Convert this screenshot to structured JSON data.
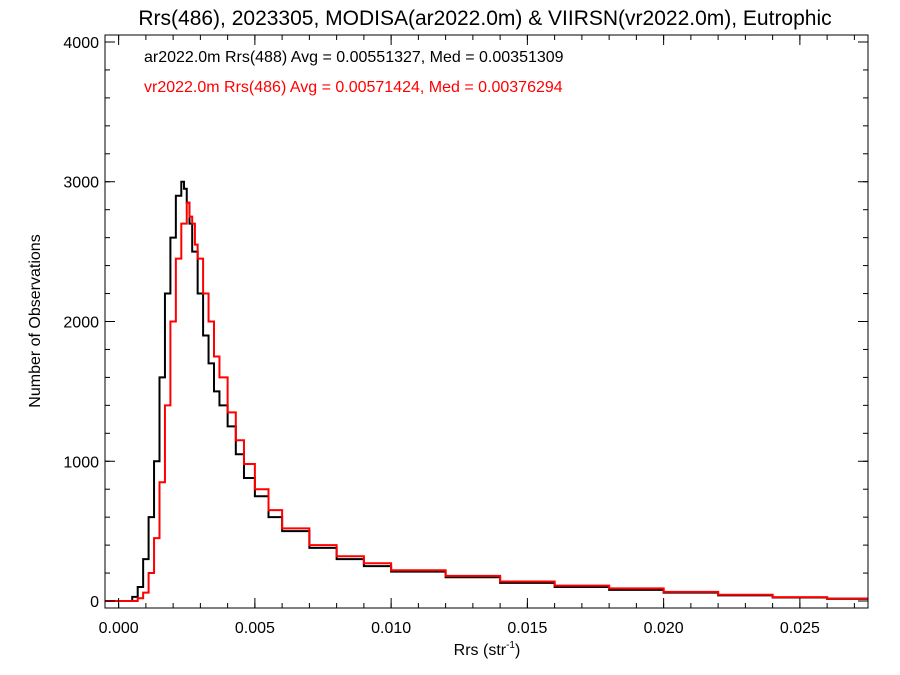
{
  "chart_data": {
    "type": "line",
    "step": true,
    "title": "Rrs(486), 2023305, MODISA(ar2022.0m) & VIIRSN(vr2022.0m), Eutrophic",
    "xlabel": "Rrs (str",
    "xlabel_sup": "-1",
    "xlabel_close": ")",
    "ylabel": "Number of Observations",
    "xlim": [
      -0.0005,
      0.0275
    ],
    "ylim": [
      -50,
      4050
    ],
    "xticks": [
      0.0,
      0.005,
      0.01,
      0.015,
      0.02,
      0.025
    ],
    "xtick_labels": [
      "0.000",
      "0.005",
      "0.010",
      "0.015",
      "0.020",
      "0.025"
    ],
    "yticks": [
      0,
      1000,
      2000,
      3000,
      4000
    ],
    "ytick_labels": [
      "0",
      "1000",
      "2000",
      "3000",
      "4000"
    ],
    "legend_position": "top-left",
    "series": [
      {
        "name": "ar2022.0m Rrs(488) Avg = 0.00551327, Med = 0.00351309",
        "color": "#000000",
        "x": [
          -0.0005,
          0.0005,
          0.0007,
          0.0009,
          0.0011,
          0.0013,
          0.0015,
          0.0017,
          0.0019,
          0.0021,
          0.0023,
          0.0024,
          0.0025,
          0.0026,
          0.0027,
          0.0029,
          0.0031,
          0.0033,
          0.0035,
          0.0037,
          0.004,
          0.0043,
          0.0046,
          0.005,
          0.0055,
          0.006,
          0.007,
          0.008,
          0.009,
          0.01,
          0.012,
          0.014,
          0.016,
          0.018,
          0.02,
          0.022,
          0.024,
          0.026,
          0.0275
        ],
        "values": [
          0,
          30,
          100,
          300,
          600,
          1000,
          1600,
          2200,
          2600,
          2900,
          3000,
          2950,
          2850,
          2700,
          2500,
          2200,
          1900,
          1700,
          1500,
          1400,
          1250,
          1050,
          880,
          750,
          600,
          500,
          380,
          300,
          250,
          210,
          170,
          130,
          100,
          80,
          60,
          40,
          25,
          15,
          10
        ]
      },
      {
        "name": "vr2022.0m Rrs(486) Avg = 0.00571424, Med = 0.00376294",
        "color": "#ff0000",
        "x": [
          -0.0005,
          0.0007,
          0.0009,
          0.0011,
          0.0013,
          0.0015,
          0.0017,
          0.0019,
          0.0021,
          0.0023,
          0.0025,
          0.0026,
          0.0027,
          0.0028,
          0.0029,
          0.0031,
          0.0033,
          0.0035,
          0.0037,
          0.004,
          0.0043,
          0.0046,
          0.005,
          0.0055,
          0.006,
          0.007,
          0.008,
          0.009,
          0.01,
          0.012,
          0.014,
          0.016,
          0.018,
          0.02,
          0.022,
          0.024,
          0.026,
          0.0275
        ],
        "values": [
          0,
          20,
          60,
          200,
          450,
          850,
          1400,
          2000,
          2450,
          2700,
          2850,
          2750,
          2700,
          2550,
          2450,
          2200,
          2000,
          1750,
          1600,
          1350,
          1150,
          980,
          800,
          650,
          520,
          400,
          320,
          270,
          220,
          180,
          140,
          110,
          90,
          65,
          45,
          28,
          18,
          12
        ]
      }
    ]
  }
}
